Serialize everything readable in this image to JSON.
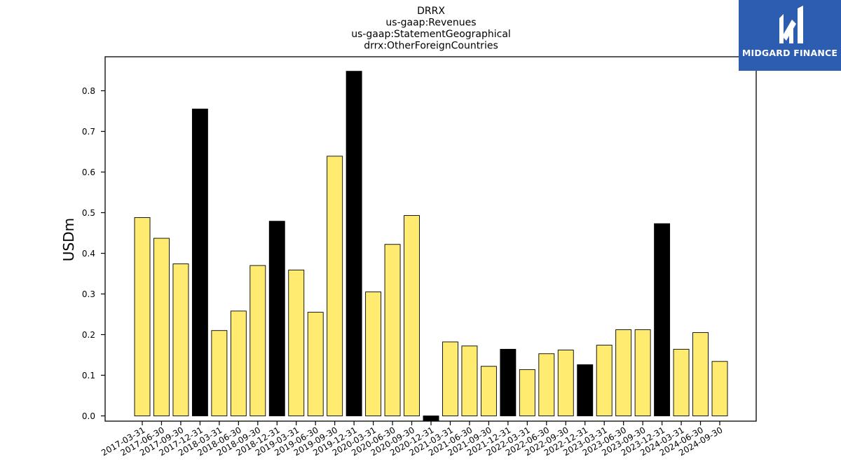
{
  "logo": {
    "text": "MIDGARD FINANCE",
    "background": "#2c5db0"
  },
  "chart_data": {
    "type": "bar",
    "title_lines": [
      "DRRX",
      "us-gaap:Revenues",
      "us-gaap:StatementGeographical",
      "drrx:OtherForeignCountries"
    ],
    "xlabel": "",
    "ylabel": "USDm",
    "ylim": [
      -0.015,
      0.88
    ],
    "yticks": [
      0.0,
      0.1,
      0.2,
      0.3,
      0.4,
      0.5,
      0.6,
      0.7,
      0.8
    ],
    "ytick_labels": [
      "0.0",
      "0.1",
      "0.2",
      "0.3",
      "0.4",
      "0.5",
      "0.6",
      "0.7",
      "0.8"
    ],
    "grid": false,
    "categories": [
      "2017-03-31",
      "2017-06-30",
      "2017-09-30",
      "2017-12-31",
      "2018-03-31",
      "2018-06-30",
      "2018-09-30",
      "2018-12-31",
      "2019-03-31",
      "2019-06-30",
      "2019-09-30",
      "2019-12-31",
      "2020-03-31",
      "2020-06-30",
      "2020-09-30",
      "2020-12-31",
      "2021-03-31",
      "2021-06-30",
      "2021-09-30",
      "2021-12-31",
      "2022-03-31",
      "2022-06-30",
      "2022-09-30",
      "2022-12-31",
      "2023-03-31",
      "2023-06-30",
      "2023-09-30",
      "2023-12-31",
      "2024-03-31",
      "2024-06-30",
      "2024-09-30"
    ],
    "values": [
      0.488,
      0.437,
      0.374,
      0.755,
      0.21,
      0.258,
      0.37,
      0.479,
      0.359,
      0.255,
      0.639,
      0.848,
      0.305,
      0.422,
      0.493,
      -0.012,
      0.182,
      0.172,
      0.122,
      0.164,
      0.114,
      0.153,
      0.162,
      0.126,
      0.174,
      0.212,
      0.212,
      0.473,
      0.164,
      0.205,
      0.134
    ],
    "bar_colors": [
      "#ffeb70",
      "#ffeb70",
      "#ffeb70",
      "#000000",
      "#ffeb70",
      "#ffeb70",
      "#ffeb70",
      "#000000",
      "#ffeb70",
      "#ffeb70",
      "#ffeb70",
      "#000000",
      "#ffeb70",
      "#ffeb70",
      "#ffeb70",
      "#000000",
      "#ffeb70",
      "#ffeb70",
      "#ffeb70",
      "#000000",
      "#ffeb70",
      "#ffeb70",
      "#ffeb70",
      "#000000",
      "#ffeb70",
      "#ffeb70",
      "#ffeb70",
      "#000000",
      "#ffeb70",
      "#ffeb70",
      "#ffeb70"
    ],
    "edge_color": "#000000"
  }
}
